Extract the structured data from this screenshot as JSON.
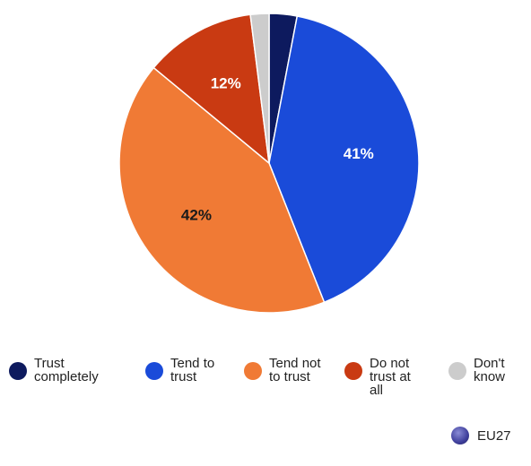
{
  "chart_data": {
    "type": "pie",
    "slices": [
      {
        "label": "Trust completely",
        "value": 3,
        "data_label": "",
        "color": "#0d1a5e"
      },
      {
        "label": "Tend to trust",
        "value": 41,
        "data_label": "41%",
        "color": "#1a4bd9"
      },
      {
        "label": "Tend not to trust",
        "value": 42,
        "data_label": "42%",
        "color": "#f07a35"
      },
      {
        "label": "Do not trust at all",
        "value": 12,
        "data_label": "12%",
        "color": "#c93a12"
      },
      {
        "label": "Don't know",
        "value": 2,
        "data_label": "",
        "color": "#cccccc"
      }
    ],
    "legend_position": "bottom",
    "scope_label": "EU27",
    "scope_color": "#3f3f9c"
  },
  "legend": {
    "items": [
      {
        "label": "Trust completely",
        "color": "#0d1a5e"
      },
      {
        "label": "Tend to trust",
        "color": "#1a4bd9"
      },
      {
        "label": "Tend not to trust",
        "color": "#f07a35"
      },
      {
        "label": "Do not trust at all",
        "color": "#c93a12"
      },
      {
        "label": "Don't know",
        "color": "#cccccc"
      }
    ]
  },
  "scope": {
    "label": "EU27"
  }
}
